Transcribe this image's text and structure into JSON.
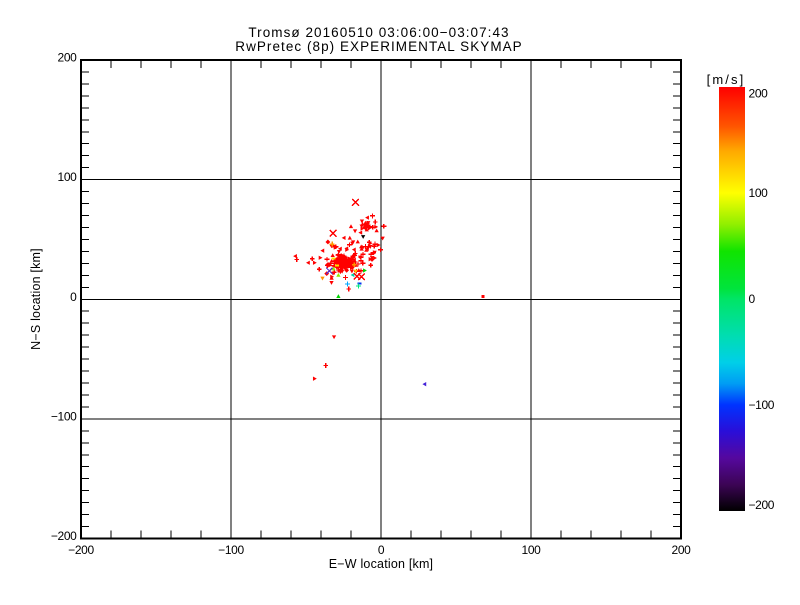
{
  "window": {
    "background": "#FFFFFF"
  },
  "title": {
    "line1": "Tromsø 20160510 03:06:00−03:07:43",
    "line2": "RwPretec (8p) EXPERIMENTAL SKYMAP"
  },
  "chart_data": {
    "type": "scatter",
    "title": "Tromsø 20160510 03:06:00−03:07:43",
    "subtitle": "RwPretec (8p) EXPERIMENTAL SKYMAP",
    "xlabel": "E−W location [km]",
    "ylabel": "N−S location [km]",
    "xlim": [
      -200,
      200
    ],
    "ylim": [
      -200,
      200
    ],
    "xticks": [
      -200,
      -100,
      0,
      100,
      200
    ],
    "yticks": [
      -200,
      -100,
      0,
      100,
      200
    ],
    "x_minor_step": 20,
    "y_minor_step": 10,
    "grid": true,
    "axis_color": "#000000",
    "palette": {
      "r": "#FF0000",
      "o": "#FF9100",
      "a": "#FFC400",
      "y": "#FFE000",
      "ch": "#8FE800",
      "g": "#00D400",
      "sp": "#00E87E",
      "te": "#00CDA5",
      "az": "#00A6FF",
      "b": "#0033F0",
      "in": "#4422D8",
      "pu": "#5A30C8",
      "k": "#000000"
    },
    "colorbar": {
      "title": "[m/s]",
      "min": -200,
      "max": 200,
      "ticks": [
        200,
        100,
        0,
        -100,
        -200
      ],
      "position": "right",
      "stops": [
        [
          200,
          "#FF0000"
        ],
        [
          163,
          "#FF5500"
        ],
        [
          140,
          "#FFA800"
        ],
        [
          100,
          "#FFFF00"
        ],
        [
          70,
          "#8FEF00"
        ],
        [
          45,
          "#10E400"
        ],
        [
          10,
          "#00E43C"
        ],
        [
          0,
          "#00E566"
        ],
        [
          -35,
          "#00DDB2"
        ],
        [
          -60,
          "#00CFE8"
        ],
        [
          -80,
          "#009CF4"
        ],
        [
          -100,
          "#0033FF"
        ],
        [
          -125,
          "#2A0ED8"
        ],
        [
          -150,
          "#55089E"
        ],
        [
          -175,
          "#3C0455"
        ],
        [
          -200,
          "#000000"
        ]
      ]
    },
    "points": [
      [
        -26.8,
        30.2,
        "r",
        "tu"
      ],
      [
        -25.9,
        33.5,
        "r",
        "p"
      ],
      [
        -31.2,
        22.5,
        "r",
        "p"
      ],
      [
        -27.2,
        30.4,
        "r",
        "p"
      ],
      [
        -24.7,
        36.2,
        "r",
        "p"
      ],
      [
        -34.1,
        28.3,
        "r",
        "tr"
      ],
      [
        -29.7,
        30.1,
        "r",
        "p"
      ],
      [
        -28.0,
        39.9,
        "r",
        "td"
      ],
      [
        -23.1,
        24.5,
        "r",
        "td"
      ],
      [
        -26.7,
        34.1,
        "r",
        "td"
      ],
      [
        -27.3,
        32.7,
        "r",
        "p"
      ],
      [
        -29.2,
        34.2,
        "r",
        "tu"
      ],
      [
        -22.9,
        24.2,
        "r",
        "d"
      ],
      [
        -17.2,
        38.2,
        "r",
        "p"
      ],
      [
        -35.8,
        28.3,
        "r",
        "p"
      ],
      [
        -22.1,
        28.2,
        "r",
        "p"
      ],
      [
        -26.5,
        29.7,
        "r",
        "p"
      ],
      [
        -23.7,
        18.1,
        "r",
        "p"
      ],
      [
        -25.7,
        33.1,
        "r",
        "tu"
      ],
      [
        -36.0,
        33.5,
        "r",
        "p"
      ],
      [
        -28.6,
        33.2,
        "r",
        "tu"
      ],
      [
        -28.5,
        24.5,
        "r",
        "p"
      ],
      [
        -28.6,
        29.3,
        "r",
        "tr"
      ],
      [
        -25.8,
        36.0,
        "r",
        "tu"
      ],
      [
        -18.2,
        30.6,
        "r",
        "d"
      ],
      [
        -25.1,
        34.9,
        "r",
        "td"
      ],
      [
        -25.4,
        27.8,
        "r",
        "p"
      ],
      [
        -24.1,
        26.7,
        "r",
        "p"
      ],
      [
        -22.8,
        41.4,
        "r",
        "tr"
      ],
      [
        -29.2,
        37.0,
        "r",
        "tl"
      ],
      [
        -20.1,
        26.7,
        "r",
        "p"
      ],
      [
        -26.4,
        34.4,
        "r",
        "d"
      ],
      [
        -34.8,
        29.2,
        "r",
        "tl"
      ],
      [
        -21.6,
        28.3,
        "r",
        "p"
      ],
      [
        -23.0,
        31.0,
        "r",
        "tr"
      ],
      [
        -24.6,
        31.8,
        "r",
        "p"
      ],
      [
        -24.1,
        33.2,
        "r",
        "tu"
      ],
      [
        -27.8,
        31.8,
        "r",
        "tl"
      ],
      [
        -31.1,
        28.1,
        "r",
        "tu"
      ],
      [
        -15.3,
        29.4,
        "r",
        "p"
      ],
      [
        -27.2,
        29.0,
        "r",
        "d"
      ],
      [
        -25.9,
        23.3,
        "r",
        "td"
      ],
      [
        -21.5,
        34.1,
        "r",
        "tr"
      ],
      [
        -17.2,
        31.1,
        "r",
        "tr"
      ],
      [
        -26.5,
        36.3,
        "r",
        "p"
      ],
      [
        -28.6,
        30.9,
        "r",
        "tu"
      ],
      [
        -28.4,
        37.1,
        "r",
        "p"
      ],
      [
        -24.3,
        35.1,
        "r",
        "p"
      ],
      [
        -35.3,
        29.1,
        "r",
        "d"
      ],
      [
        -19.5,
        28.0,
        "r",
        "tr"
      ],
      [
        -13.4,
        32.3,
        "r",
        "p"
      ],
      [
        -24.6,
        27.9,
        "r",
        "p"
      ],
      [
        -16.4,
        23.4,
        "r",
        "p"
      ],
      [
        -27.1,
        22.8,
        "r",
        "td"
      ],
      [
        -28.8,
        30.5,
        "r",
        "tu"
      ],
      [
        -32.9,
        31.9,
        "r",
        "tu"
      ],
      [
        -33.4,
        29.9,
        "r",
        "p"
      ],
      [
        -17.7,
        27.7,
        "r",
        "tr"
      ],
      [
        -24.6,
        34.7,
        "r",
        "tu"
      ],
      [
        -29.5,
        27.1,
        "r",
        "d"
      ],
      [
        -26.4,
        31.2,
        "r",
        "p"
      ],
      [
        -26.4,
        34.0,
        "r",
        "p"
      ],
      [
        -24.3,
        30.3,
        "r",
        "tr"
      ],
      [
        -25.7,
        28.9,
        "r",
        "p"
      ],
      [
        -23.2,
        29.6,
        "r",
        "p"
      ],
      [
        -24.7,
        34.0,
        "r",
        "d"
      ],
      [
        -18.6,
        35.9,
        "r",
        "p"
      ],
      [
        -26.3,
        29.4,
        "r",
        "tr"
      ],
      [
        -23.2,
        28.6,
        "r",
        "p"
      ],
      [
        -25.7,
        28.1,
        "r",
        "tl"
      ],
      [
        -29.4,
        31.5,
        "r",
        "tu"
      ],
      [
        -26.8,
        26.8,
        "r",
        "p"
      ],
      [
        -26.5,
        32.1,
        "r",
        "p"
      ],
      [
        -22.3,
        31.8,
        "r",
        "d"
      ],
      [
        -27.4,
        31.5,
        "r",
        "tu"
      ],
      [
        -30.7,
        32.0,
        "r",
        "p"
      ],
      [
        -30.3,
        32.7,
        "r",
        "d"
      ],
      [
        -20.0,
        33.1,
        "r",
        "d"
      ],
      [
        -19.4,
        23.5,
        "r",
        "td"
      ],
      [
        -22.8,
        29.0,
        "r",
        "tr"
      ],
      [
        -30.8,
        31.2,
        "r",
        "p"
      ],
      [
        -23.9,
        30.7,
        "r",
        "tl"
      ],
      [
        -24.6,
        35.9,
        "r",
        "tr"
      ],
      [
        -25.2,
        35.2,
        "r",
        "tr"
      ],
      [
        -19.7,
        30.4,
        "r",
        "tr"
      ],
      [
        -26.2,
        30.7,
        "r",
        "p"
      ],
      [
        -19.6,
        29.7,
        "r",
        "d"
      ],
      [
        -21.3,
        31.5,
        "r",
        "p"
      ],
      [
        -27.5,
        28.7,
        "r",
        "p"
      ],
      [
        -25.1,
        30.3,
        "r",
        "d"
      ],
      [
        -22.1,
        31.5,
        "r",
        "p"
      ],
      [
        -17.8,
        33.1,
        "r",
        "tl"
      ],
      [
        -18.8,
        35.0,
        "r",
        "p"
      ],
      [
        -24.9,
        30.1,
        "r",
        "p"
      ],
      [
        -27.9,
        32.5,
        "r",
        "d"
      ],
      [
        -25.1,
        32.7,
        "r",
        "tu"
      ],
      [
        -24.5,
        28.3,
        "r",
        "tl"
      ],
      [
        -20.7,
        33.8,
        "r",
        "tr"
      ],
      [
        -26.3,
        35.2,
        "r",
        "p"
      ],
      [
        -19.3,
        30.8,
        "r",
        "p"
      ],
      [
        -22.7,
        30.5,
        "r",
        "p"
      ],
      [
        -25.8,
        30.4,
        "r",
        "td"
      ],
      [
        -18.9,
        26.2,
        "r",
        "td"
      ],
      [
        -24.8,
        33.7,
        "r",
        "d"
      ],
      [
        -25.3,
        26.4,
        "r",
        "td"
      ],
      [
        -24.2,
        30.2,
        "r",
        "p"
      ],
      [
        -31.4,
        28.1,
        "r",
        "p"
      ],
      [
        -22.3,
        29.9,
        "r",
        "p"
      ],
      [
        -19.7,
        27.2,
        "r",
        "p"
      ],
      [
        -24.6,
        34.7,
        "r",
        "tr"
      ],
      [
        -26.9,
        34.4,
        "r",
        "p"
      ],
      [
        -24.3,
        34.1,
        "r",
        "p"
      ],
      [
        -19.4,
        31.9,
        "r",
        "p"
      ],
      [
        -24.0,
        30.8,
        "r",
        "td"
      ],
      [
        -17.5,
        36.8,
        "r",
        "p"
      ],
      [
        -24.2,
        26.6,
        "r",
        "tl"
      ],
      [
        -25.5,
        29.9,
        "r",
        "tr"
      ],
      [
        -20.5,
        28.3,
        "r",
        "p"
      ],
      [
        -26.9,
        33.4,
        "r",
        "tl"
      ],
      [
        -22.0,
        32.4,
        "r",
        "td"
      ],
      [
        -23.0,
        30.3,
        "r",
        "td"
      ],
      [
        -23.4,
        32.8,
        "r",
        "p"
      ],
      [
        -26.6,
        33.7,
        "r",
        "p"
      ],
      [
        -27.9,
        32.9,
        "r",
        "p"
      ],
      [
        -21.8,
        29.5,
        "r",
        "p"
      ],
      [
        -17.9,
        29.7,
        "r",
        "tl"
      ],
      [
        -18.5,
        31.3,
        "r",
        "td"
      ],
      [
        -23.3,
        27.4,
        "r",
        "tu"
      ],
      [
        -14.8,
        24.1,
        "r",
        "tu"
      ],
      [
        -17.9,
        41.5,
        "r",
        "tl"
      ],
      [
        -13.3,
        23.7,
        "r",
        "p"
      ],
      [
        -19.1,
        46.8,
        "r",
        "td"
      ],
      [
        -30.1,
        43.9,
        "r",
        "p"
      ],
      [
        -22.9,
        42.4,
        "r",
        "tl"
      ],
      [
        -33.0,
        44.5,
        "r",
        "td"
      ],
      [
        -27.2,
        42.2,
        "r",
        "tl"
      ],
      [
        -32.0,
        21.7,
        "r",
        "td"
      ],
      [
        -21.1,
        31.8,
        "r",
        "tu"
      ],
      [
        -15.5,
        48.0,
        "r",
        "tu"
      ],
      [
        -13.9,
        35.1,
        "r",
        "td"
      ],
      [
        -26.0,
        27.4,
        "r",
        "p"
      ],
      [
        -20.8,
        32.7,
        "r",
        "p"
      ],
      [
        -24.1,
        34.8,
        "r",
        "tl"
      ],
      [
        -6,
        33.2,
        "r",
        "d"
      ],
      [
        -32.8,
        18.8,
        "r",
        "tr"
      ],
      [
        -28.9,
        27.6,
        "r",
        "p"
      ],
      [
        -6.8,
        28.4,
        "r",
        "p"
      ],
      [
        -31.4,
        44.6,
        "r",
        "tr"
      ],
      [
        -16.8,
        28.5,
        "r",
        "tu"
      ],
      [
        -32.2,
        36.6,
        "r",
        "tu"
      ],
      [
        -10.8,
        61.0,
        "r",
        "tu"
      ],
      [
        -5.6,
        60.2,
        "r",
        "p"
      ],
      [
        -10.8,
        60.2,
        "r",
        "d"
      ],
      [
        -8.1,
        59.8,
        "r",
        "p"
      ],
      [
        -12.3,
        62.8,
        "r",
        "tu"
      ],
      [
        -10.4,
        63.7,
        "r",
        "tu"
      ],
      [
        -8.5,
        64.0,
        "r",
        "td"
      ],
      [
        -9.5,
        58.1,
        "r",
        "tu"
      ],
      [
        -12.9,
        61.2,
        "r",
        "td"
      ],
      [
        -3.9,
        64.6,
        "r",
        "p"
      ],
      [
        -10.1,
        60.0,
        "r",
        "p"
      ],
      [
        -8.7,
        62.1,
        "r",
        "tr"
      ],
      [
        -12.6,
        59.0,
        "r",
        "tr"
      ],
      [
        -10.6,
        62.5,
        "r",
        "p"
      ],
      [
        -9.5,
        60.8,
        "r",
        "tl"
      ],
      [
        -9.2,
        63.3,
        "r",
        "p"
      ],
      [
        -7.6,
        60.6,
        "r",
        "p"
      ],
      [
        -9.2,
        61.1,
        "r",
        "td"
      ],
      [
        -7.8,
        47.6,
        "r",
        "p"
      ],
      [
        -21,
        45.5,
        "r",
        "p"
      ],
      [
        -20.8,
        51.2,
        "r",
        "tu"
      ],
      [
        -18.6,
        47.9,
        "r",
        "td"
      ],
      [
        -4,
        46.1,
        "r",
        "p"
      ],
      [
        -9.2,
        42,
        "r",
        "tl"
      ],
      [
        -10.3,
        44.0,
        "r",
        "p"
      ],
      [
        -13.2,
        43.9,
        "r",
        "tu"
      ],
      [
        -12.9,
        42,
        "r",
        "tu"
      ],
      [
        -12.5,
        43.6,
        "r",
        "tu"
      ],
      [
        -7.7,
        44.4,
        "r",
        "tr"
      ],
      [
        -8.7,
        42.9,
        "r",
        "td"
      ],
      [
        -6.7,
        37.7,
        "r",
        "p"
      ],
      [
        -7.3,
        46.6,
        "r",
        "tr"
      ],
      [
        -7.1,
        44.0,
        "r",
        "td"
      ],
      [
        -12.0,
        37.6,
        "r",
        "p"
      ],
      [
        -6.0,
        34.7,
        "r",
        "td"
      ],
      [
        -13.3,
        35.1,
        "r",
        "p"
      ],
      [
        -4.2,
        34.5,
        "r",
        "tr"
      ],
      [
        -4.3,
        39.2,
        "r",
        "td"
      ],
      [
        -48.5,
        30.5,
        "r",
        "tl"
      ],
      [
        -45.8,
        33.8,
        "r",
        "p"
      ],
      [
        -41.2,
        25.1,
        "r",
        "p"
      ],
      [
        -38.9,
        40.6,
        "r",
        "tl"
      ],
      [
        -35.4,
        47.9,
        "r",
        "d"
      ],
      [
        -44.3,
        30.5,
        "r",
        "tr"
      ],
      [
        -40.5,
        34.7,
        "r",
        "tr"
      ],
      [
        -36.2,
        21.4,
        "r",
        "d"
      ],
      [
        -33.0,
        13.9,
        "r",
        "td"
      ],
      [
        -21.5,
        8.6,
        "r",
        "p"
      ],
      [
        -12.1,
        30.2,
        "r",
        "p"
      ],
      [
        -7.2,
        33.5,
        "r",
        "tr"
      ],
      [
        -5.0,
        38.9,
        "r",
        "p"
      ],
      [
        -9.8,
        41.0,
        "r",
        "tu"
      ],
      [
        -13.6,
        55.7,
        "r",
        "tl"
      ],
      [
        -3.4,
        60.5,
        "r",
        "tr"
      ],
      [
        -5.7,
        69.7,
        "r",
        "p"
      ],
      [
        -9.1,
        68.2,
        "r",
        "tl"
      ],
      [
        -12.7,
        65.3,
        "r",
        "td"
      ],
      [
        -2.9,
        57.3,
        "r",
        "tu"
      ],
      [
        -20.0,
        60.8,
        "r",
        "tu"
      ],
      [
        -17.3,
        57.1,
        "r",
        "td"
      ],
      [
        -24.7,
        51.3,
        "r",
        "tl"
      ],
      [
        -30.5,
        43.2,
        "r",
        "tr"
      ],
      [
        -27.1,
        24.9,
        "r",
        "p"
      ],
      [
        1.9,
        61.0,
        "r",
        "p"
      ],
      [
        1.1,
        51.0,
        "r",
        "td"
      ],
      [
        -0.4,
        41.4,
        "r",
        "p"
      ],
      [
        -1.8,
        45.3,
        "r",
        "tr"
      ],
      [
        -4.5,
        44.3,
        "r",
        "p"
      ],
      [
        -57.1,
        36.0,
        "r",
        "tl"
      ],
      [
        -56.2,
        33.2,
        "r",
        "p"
      ],
      [
        -32.6,
        46.1,
        "o",
        "p"
      ],
      [
        -17.8,
        28.9,
        "o",
        "p"
      ],
      [
        -29.5,
        28.2,
        "y",
        "s"
      ],
      [
        -31.6,
        33.9,
        "y",
        "s"
      ],
      [
        -16.9,
        23.4,
        "a",
        "td"
      ],
      [
        -39.0,
        17.6,
        "o",
        "td"
      ],
      [
        -28.4,
        20.1,
        "ch",
        "tu"
      ],
      [
        -31.6,
        25.5,
        "ch",
        "tu"
      ],
      [
        -18.8,
        20.3,
        "te",
        "tl"
      ],
      [
        -10.9,
        24.0,
        "g",
        "tr"
      ],
      [
        -22.4,
        12.8,
        "az",
        "p"
      ],
      [
        -14.3,
        13.1,
        "b",
        "s"
      ],
      [
        -15.0,
        11.1,
        "sp",
        "p"
      ],
      [
        -28.4,
        2.4,
        "g",
        "tu"
      ],
      [
        -32.9,
        17.6,
        "r",
        "tu"
      ],
      [
        -17.0,
        81.0,
        "r",
        "X"
      ],
      [
        -31.9,
        55.2,
        "r",
        "X"
      ],
      [
        -34.4,
        23.7,
        "pu",
        "x"
      ],
      [
        -16.0,
        19.3,
        "r",
        "x"
      ],
      [
        -13.0,
        18.9,
        "r",
        "x"
      ],
      [
        -11.9,
        52.3,
        "k",
        "td"
      ],
      [
        -31.3,
        -31.5,
        "r",
        "td"
      ],
      [
        -36.8,
        -55.3,
        "r",
        "p"
      ],
      [
        -44.3,
        -66.4,
        "r",
        "tr"
      ],
      [
        29.1,
        -71.0,
        "in",
        "tl"
      ],
      [
        68.0,
        2.5,
        "r",
        "o"
      ]
    ],
    "legend": null
  }
}
